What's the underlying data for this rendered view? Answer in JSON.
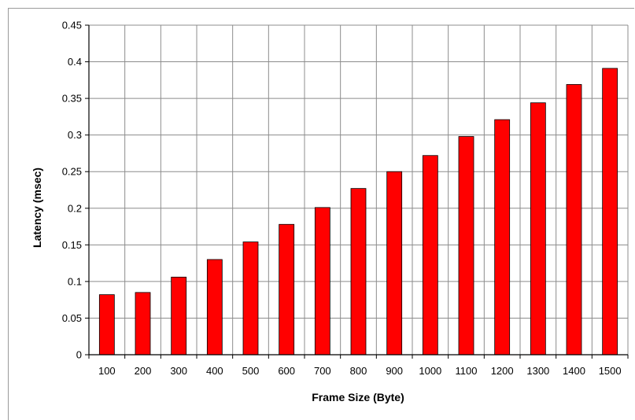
{
  "chart_data": {
    "type": "bar",
    "title": "",
    "xlabel": "Frame Size (Byte)",
    "ylabel": "Latency (msec)",
    "categories": [
      "100",
      "200",
      "300",
      "400",
      "500",
      "600",
      "700",
      "800",
      "900",
      "1000",
      "1100",
      "1200",
      "1300",
      "1400",
      "1500"
    ],
    "series": [
      {
        "values": [
          0.082,
          0.085,
          0.106,
          0.13,
          0.154,
          0.178,
          0.201,
          0.227,
          0.25,
          0.272,
          0.298,
          0.321,
          0.344,
          0.369,
          0.391
        ],
        "color": "#ff0000"
      }
    ],
    "yticks": [
      "0",
      "0.05",
      "0.1",
      "0.15",
      "0.2",
      "0.25",
      "0.3",
      "0.35",
      "0.4",
      "0.45"
    ],
    "ylim": [
      0,
      0.45
    ],
    "grid": true,
    "legend": "none"
  }
}
